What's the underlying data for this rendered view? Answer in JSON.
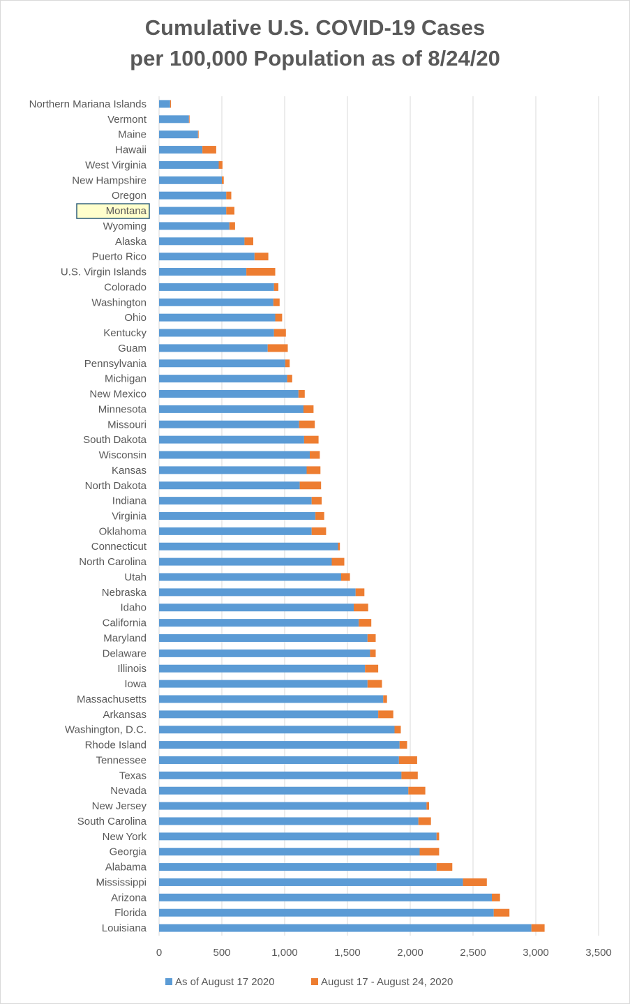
{
  "chart_data": {
    "type": "bar",
    "orientation": "horizontal",
    "stacked": true,
    "title_lines": [
      "Cumulative U.S. COVID-19 Cases",
      "per 100,000 Population as of 8/24/20"
    ],
    "xlim": [
      0,
      3500
    ],
    "x_ticks": [
      "0",
      "500",
      "1,000",
      "1,500",
      "2,000",
      "2,500",
      "3,000",
      "3,500"
    ],
    "x_tick_values": [
      0,
      500,
      1000,
      1500,
      2000,
      2500,
      3000,
      3500
    ],
    "grid": "vertical",
    "legend_position": "bottom",
    "highlighted_category": "Montana",
    "categories": [
      "Northern Mariana Islands",
      "Vermont",
      "Maine",
      "Hawaii",
      "West Virginia",
      "New Hampshire",
      "Oregon",
      "Montana",
      "Wyoming",
      "Alaska",
      "Puerto Rico",
      "U.S. Virgin Islands",
      "Colorado",
      "Washington",
      "Ohio",
      "Kentucky",
      "Guam",
      "Pennsylvania",
      "Michigan",
      "New Mexico",
      "Minnesota",
      "Missouri",
      "South Dakota",
      "Wisconsin",
      "Kansas",
      "North Dakota",
      "Indiana",
      "Virginia",
      "Oklahoma",
      "Connecticut",
      "North Carolina",
      "Utah",
      "Nebraska",
      "Idaho",
      "California",
      "Maryland",
      "Delaware",
      "Illinois",
      "Iowa",
      "Massachusetts",
      "Arkansas",
      "Washington, D.C.",
      "Rhode Island",
      "Tennessee",
      "Texas",
      "Nevada",
      "New Jersey",
      "South Carolina",
      "New York",
      "Georgia",
      "Alabama",
      "Mississippi",
      "Arizona",
      "Florida",
      "Louisiana"
    ],
    "series": [
      {
        "name": "As of August 17 2020",
        "color": "#5b9bd5",
        "values": [
          88,
          238,
          310,
          345,
          475,
          500,
          535,
          535,
          560,
          680,
          760,
          695,
          915,
          910,
          925,
          915,
          865,
          1005,
          1020,
          1110,
          1150,
          1115,
          1155,
          1200,
          1175,
          1120,
          1215,
          1245,
          1215,
          1425,
          1375,
          1450,
          1565,
          1550,
          1590,
          1660,
          1680,
          1640,
          1660,
          1785,
          1745,
          1875,
          1915,
          1910,
          1930,
          1985,
          2130,
          2065,
          2210,
          2075,
          2210,
          2420,
          2650,
          2665,
          2965
        ]
      },
      {
        "name": "August 17 - August 24, 2020",
        "color": "#ed7d31",
        "values": [
          7,
          5,
          5,
          110,
          30,
          15,
          40,
          65,
          45,
          70,
          110,
          230,
          35,
          50,
          55,
          95,
          160,
          35,
          40,
          50,
          80,
          125,
          115,
          80,
          110,
          170,
          80,
          70,
          115,
          15,
          100,
          70,
          70,
          115,
          100,
          65,
          45,
          105,
          115,
          30,
          120,
          50,
          60,
          145,
          130,
          135,
          20,
          100,
          20,
          155,
          125,
          190,
          65,
          125,
          105
        ]
      }
    ]
  }
}
